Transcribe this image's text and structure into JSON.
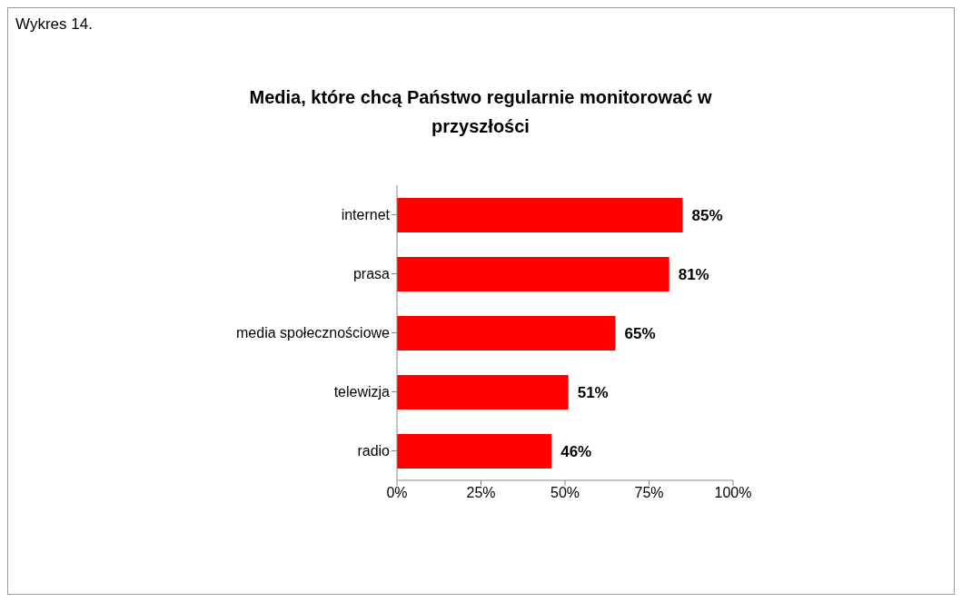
{
  "chart_data": {
    "type": "bar",
    "orientation": "horizontal",
    "title": "Media, które chcą Państwo regularnie monitorować w przyszłości",
    "categories": [
      "internet",
      "prasa",
      "media społecznościowe",
      "telewizja",
      "radio"
    ],
    "values": [
      85,
      81,
      65,
      51,
      46
    ],
    "value_labels": [
      "85%",
      "81%",
      "65%",
      "51%",
      "46%"
    ],
    "color": "#ff0000",
    "xlim": [
      0,
      100
    ],
    "xticks": [
      {
        "value": 0,
        "label": "0%"
      },
      {
        "value": 25,
        "label": "25%"
      },
      {
        "value": 50,
        "label": "50%"
      },
      {
        "value": 75,
        "label": "75%"
      },
      {
        "value": 100,
        "label": "100%"
      }
    ],
    "grid": false,
    "annotations": [
      "Wykres 14."
    ]
  }
}
